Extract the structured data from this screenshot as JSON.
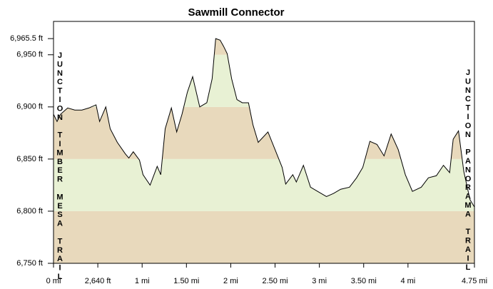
{
  "chart_data": {
    "type": "area",
    "title": "Sawmill Connector",
    "x": [
      0,
      0.04,
      0.08,
      0.16,
      0.24,
      0.32,
      0.4,
      0.48,
      0.52,
      0.59,
      0.64,
      0.72,
      0.81,
      0.85,
      0.9,
      0.97,
      1.01,
      1.09,
      1.17,
      1.21,
      1.26,
      1.33,
      1.39,
      1.45,
      1.51,
      1.57,
      1.65,
      1.73,
      1.79,
      1.83,
      1.88,
      1.92,
      1.96,
      2.01,
      2.07,
      2.13,
      2.2,
      2.25,
      2.31,
      2.42,
      2.5,
      2.58,
      2.62,
      2.7,
      2.74,
      2.82,
      2.9,
      2.98,
      3.08,
      3.16,
      3.24,
      3.34,
      3.42,
      3.49,
      3.57,
      3.65,
      3.73,
      3.81,
      3.89,
      3.97,
      4.05,
      4.15,
      4.23,
      4.32,
      4.4,
      4.47,
      4.51,
      4.57,
      4.63,
      4.7,
      4.75
    ],
    "values": [
      6893,
      6886,
      6893,
      6899,
      6897,
      6897,
      6899,
      6902,
      6886,
      6900,
      6879,
      6866,
      6855,
      6851,
      6857,
      6849,
      6835,
      6825,
      6843,
      6835,
      6879,
      6899,
      6876,
      6893,
      6914,
      6929,
      6900,
      6904,
      6927,
      6965.5,
      6964,
      6958,
      6951,
      6927,
      6907,
      6904,
      6904,
      6883,
      6866,
      6876,
      6859,
      6842,
      6826,
      6835,
      6828,
      6844,
      6823,
      6819,
      6814,
      6817,
      6821,
      6823,
      6832,
      6842,
      6867,
      6864,
      6853,
      6874,
      6859,
      6835,
      6819,
      6823,
      6832,
      6834,
      6844,
      6837,
      6869,
      6877,
      6838,
      6811,
      6804
    ],
    "color": "#000000",
    "band_colors": [
      "#e8d9bc",
      "#e8f1d4"
    ],
    "xlim": [
      0,
      4.75
    ],
    "xticks": [
      {
        "value": 0,
        "label": "0 mi"
      },
      {
        "value": 0.5,
        "label": "2,640 ft"
      },
      {
        "value": 1,
        "label": "1 mi"
      },
      {
        "value": 1.5,
        "label": "1.50 mi"
      },
      {
        "value": 2,
        "label": "2 mi"
      },
      {
        "value": 2.5,
        "label": "2.50 mi"
      },
      {
        "value": 3,
        "label": "3 mi"
      },
      {
        "value": 3.5,
        "label": "3.50 mi"
      },
      {
        "value": 4,
        "label": "4 mi"
      },
      {
        "value": 4.75,
        "label": "4.75 mi"
      }
    ],
    "ylim": [
      6750,
      6982
    ],
    "yticks": [
      {
        "value": 6750,
        "label": "6,750 ft"
      },
      {
        "value": 6800,
        "label": "6,800 ft"
      },
      {
        "value": 6850,
        "label": "6,850 ft"
      },
      {
        "value": 6900,
        "label": "6,900 ft"
      },
      {
        "value": 6950,
        "label": "6,950 ft"
      },
      {
        "value": 6965.5,
        "label": "6,965.5 ft"
      }
    ],
    "annotations": [
      "JUNCTION TIMBER MESA TRAIL",
      "JUNCTION PANORAMA TRAIL"
    ]
  }
}
